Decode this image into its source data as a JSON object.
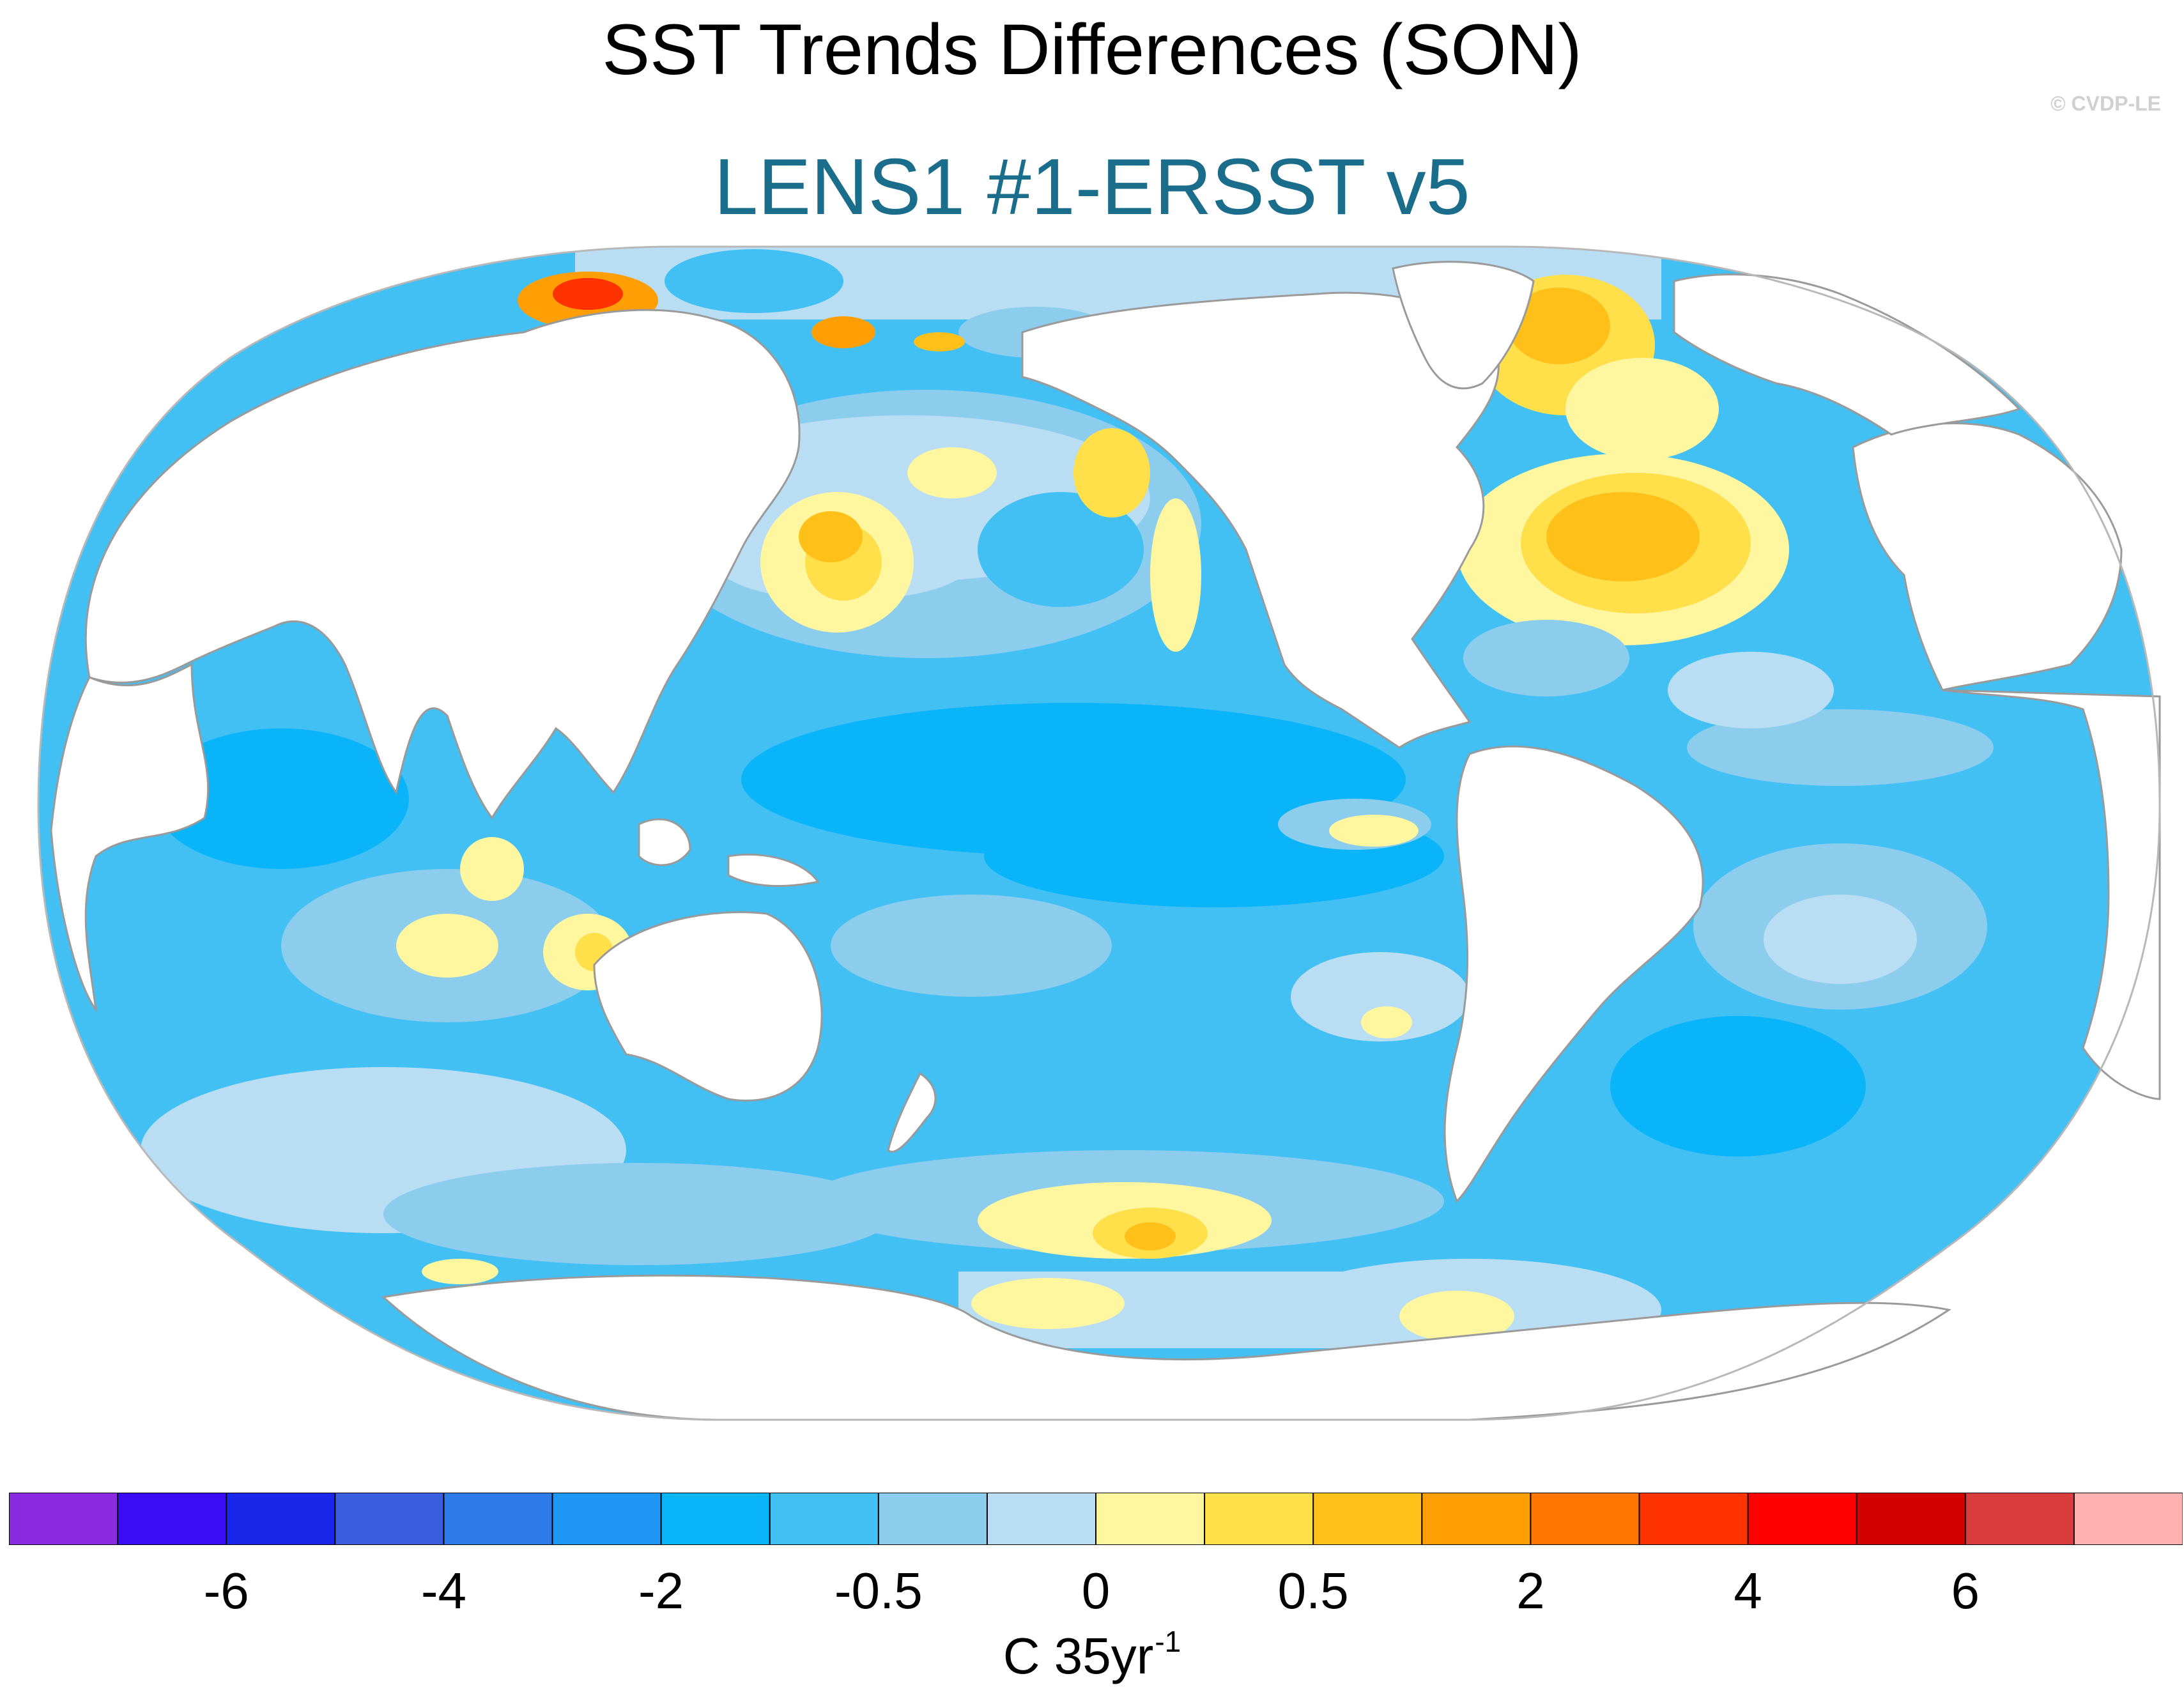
{
  "title": "SST Trends Differences (SON)",
  "subtitle": "LENS1 #1-ERSST v5",
  "subtitle_color": "#1a6e8c",
  "credit": "© CVDP-LE",
  "colorbar": {
    "colors": [
      "#8a2be2",
      "#3a0cf5",
      "#1a26ea",
      "#3a5ce0",
      "#2e7ae8",
      "#1e96f5",
      "#0ab4f8",
      "#42c0f3",
      "#8ccdee",
      "#b9def4",
      "#fff6a0",
      "#ffdf4a",
      "#ffc119",
      "#ff9e05",
      "#ff7700",
      "#ff3300",
      "#ff0000",
      "#d20000",
      "#d83c3c",
      "#ffb1b1"
    ],
    "tick_labels": [
      "-6",
      "-4",
      "-2",
      "-0.5",
      "0",
      "0.5",
      "2",
      "4",
      "6"
    ],
    "tick_edge_index": [
      2,
      4,
      6,
      8,
      10,
      12,
      14,
      16,
      18
    ],
    "units": "C 35yr",
    "units_sup": "-1"
  },
  "map": {
    "projection": "Robinson",
    "central_longitude": 180,
    "ocean_base_color": "#42c0f3",
    "coastline_color": "#9a9a9a",
    "warm_anomalies": [
      {
        "region": "North Atlantic / Gulf Stream",
        "level": "0.5-2"
      },
      {
        "region": "Labrador Sea / Greenland",
        "level": "0.5-2"
      },
      {
        "region": "Kuroshio Extension",
        "level": "0-0.5"
      },
      {
        "region": "Gulf of Alaska",
        "level": "0-0.5"
      },
      {
        "region": "Southern Ocean (South Pacific)",
        "level": "0.5-2"
      },
      {
        "region": "Barents Sea",
        "level": "2-4"
      }
    ]
  }
}
